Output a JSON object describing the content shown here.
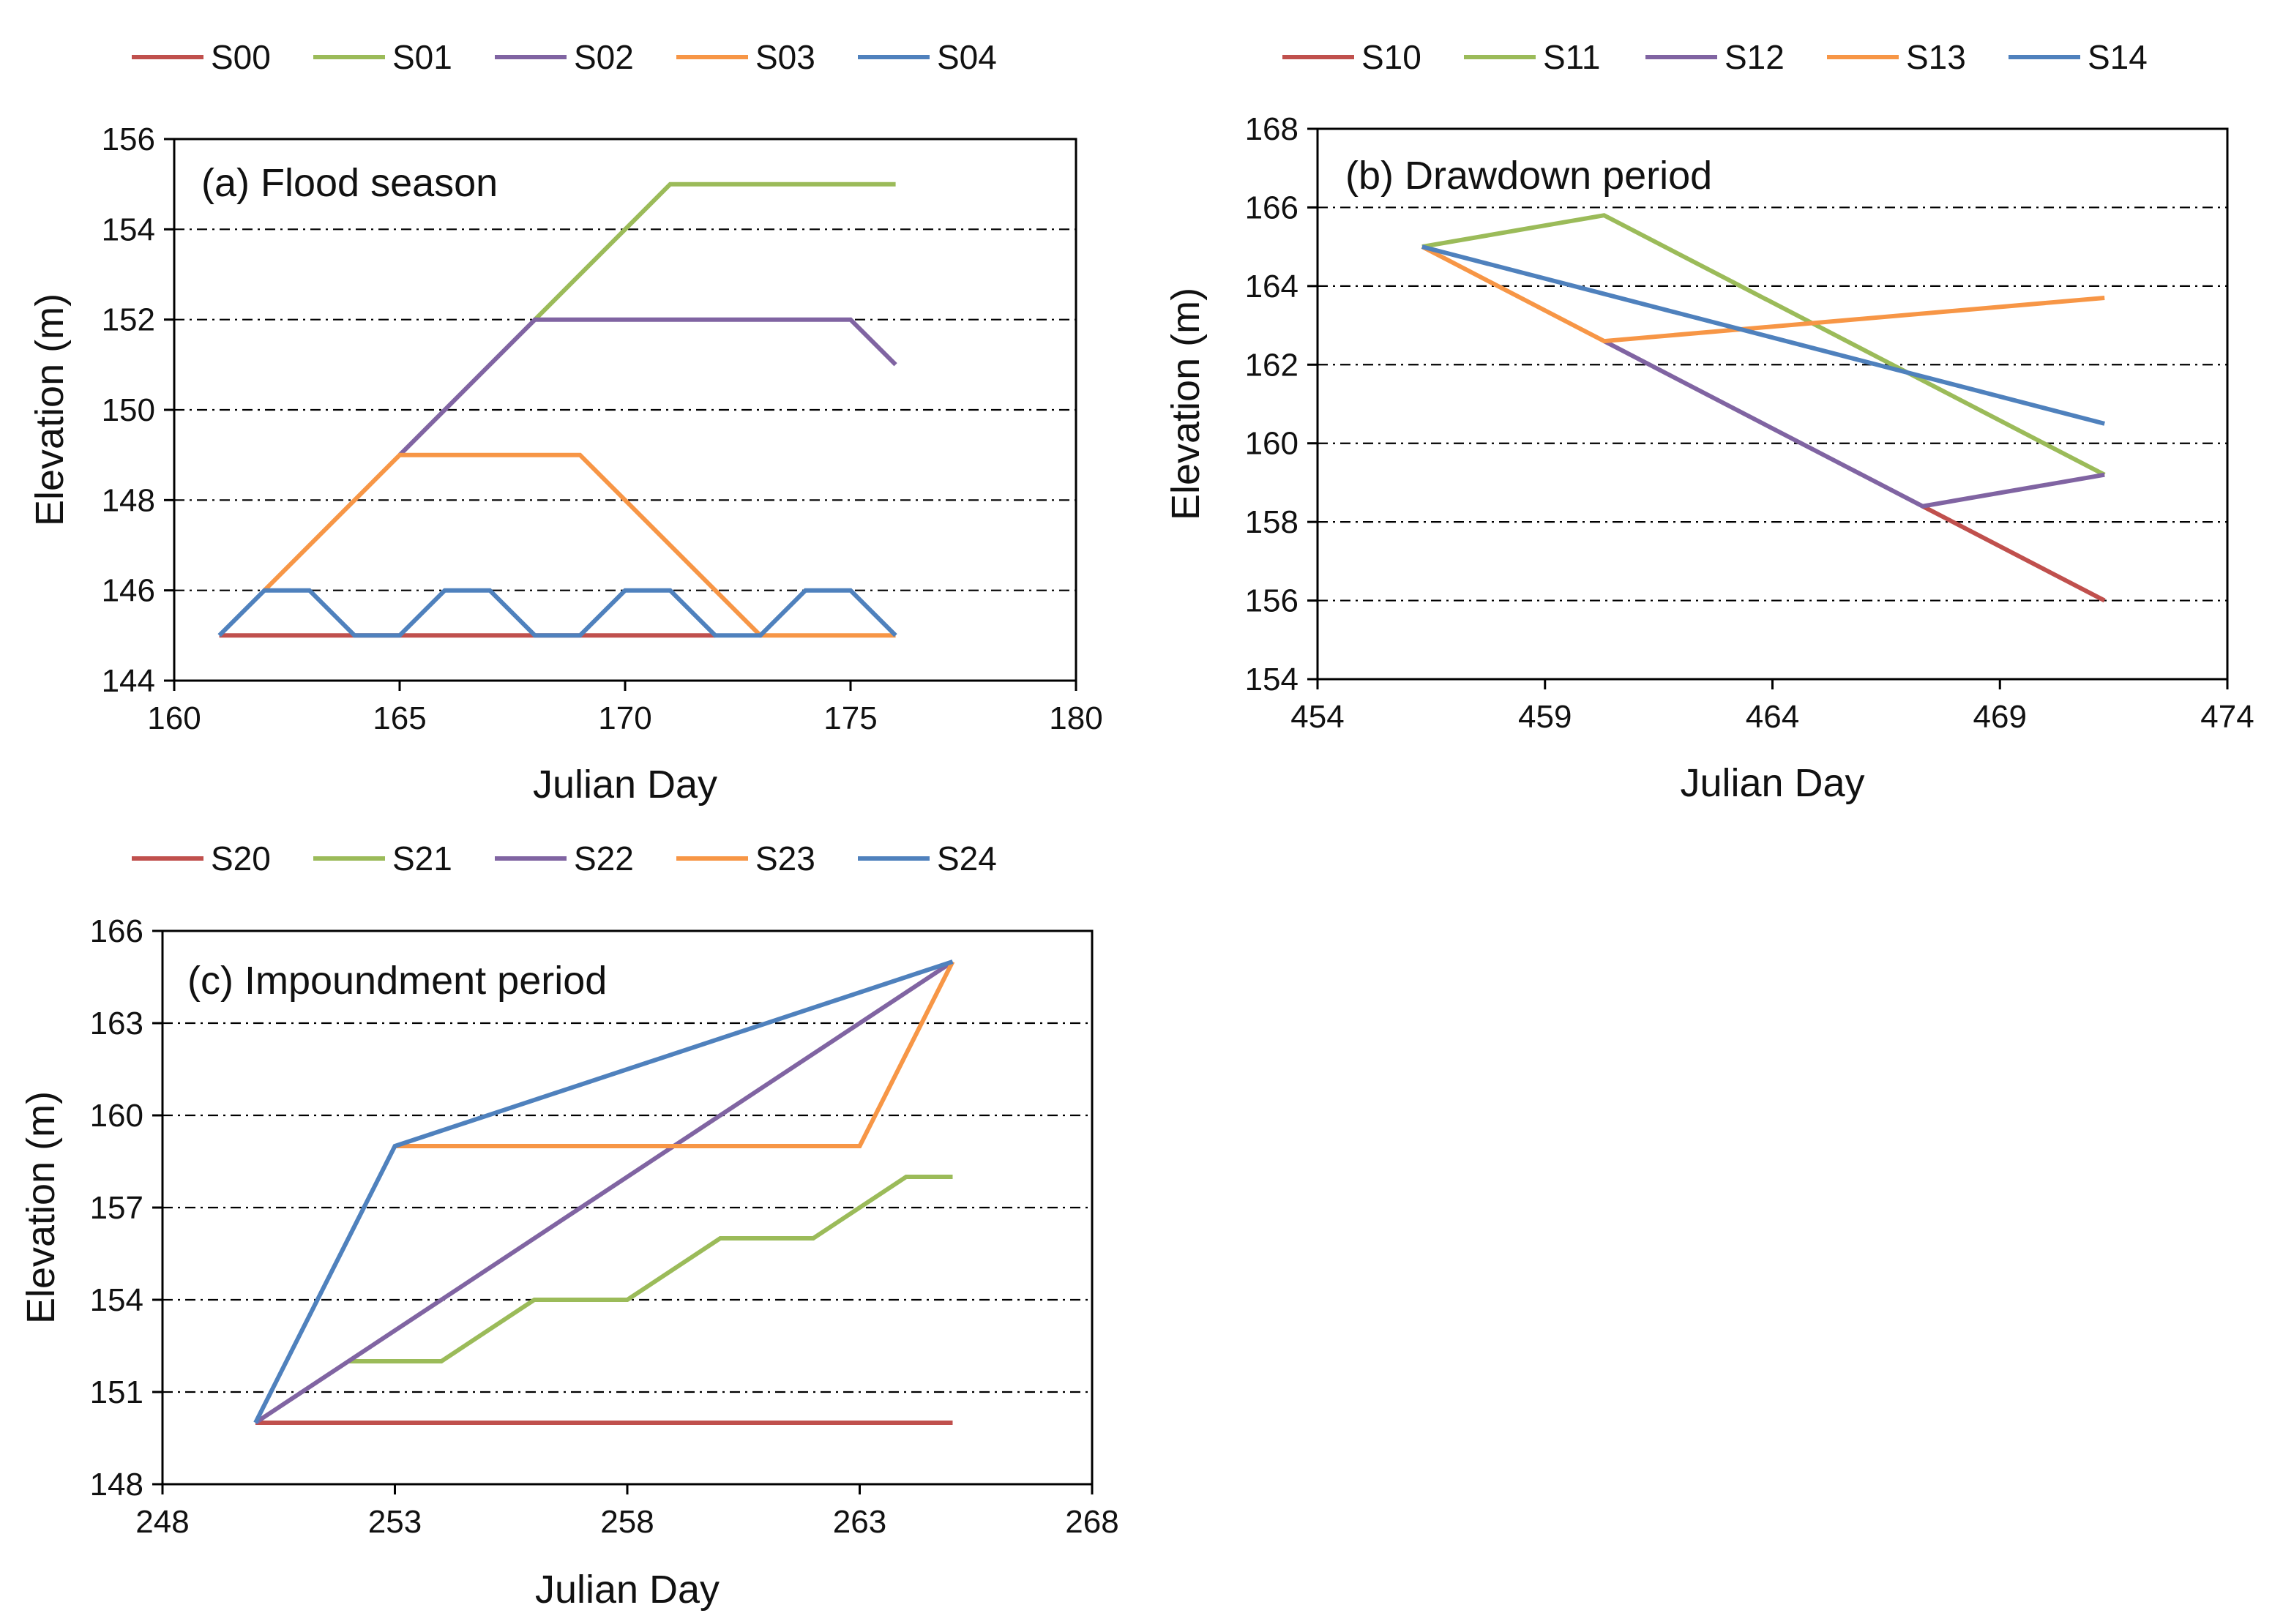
{
  "chart_data": [
    {
      "type": "line",
      "title": "(a) Flood season",
      "xlabel": "Julian Day",
      "ylabel": "Elevation (m)",
      "xlim": [
        160,
        180
      ],
      "ylim": [
        144,
        156
      ],
      "xticks": [
        "160",
        "165",
        "170",
        "175",
        "180"
      ],
      "yticks": [
        "144",
        "146",
        "148",
        "150",
        "152",
        "154",
        "156"
      ],
      "grid": "horizontal dash-dot",
      "legend_position": "top",
      "series": [
        {
          "name": "S00",
          "color": "#C0504D",
          "points": [
            [
              161,
              145
            ],
            [
              172,
              145
            ]
          ]
        },
        {
          "name": "S01",
          "color": "#9BBB59",
          "points": [
            [
              168,
              152
            ],
            [
              171,
              155
            ],
            [
              176,
              155
            ]
          ]
        },
        {
          "name": "S02",
          "color": "#8064A2",
          "points": [
            [
              165,
              149
            ],
            [
              168,
              152
            ],
            [
              175,
              152
            ],
            [
              176,
              151
            ]
          ]
        },
        {
          "name": "S03",
          "color": "#F79646",
          "points": [
            [
              162,
              146
            ],
            [
              165,
              149
            ],
            [
              169,
              149
            ],
            [
              173,
              145
            ],
            [
              176,
              145
            ]
          ]
        },
        {
          "name": "S04",
          "color": "#4F81BD",
          "points": [
            [
              161,
              145
            ],
            [
              162,
              146
            ],
            [
              163,
              146
            ],
            [
              164,
              145
            ],
            [
              165,
              145
            ],
            [
              166,
              146
            ],
            [
              167,
              146
            ],
            [
              168,
              145
            ],
            [
              169,
              145
            ],
            [
              170,
              146
            ],
            [
              171,
              146
            ],
            [
              172,
              145
            ],
            [
              173,
              145
            ],
            [
              174,
              146
            ],
            [
              175,
              146
            ],
            [
              176,
              145
            ]
          ]
        }
      ]
    },
    {
      "type": "line",
      "title": "(b) Drawdown period",
      "xlabel": "Julian Day",
      "ylabel": "Elevation (m)",
      "xlim": [
        454,
        474
      ],
      "ylim": [
        154,
        168
      ],
      "xticks": [
        "454",
        "459",
        "464",
        "469",
        "474"
      ],
      "yticks": [
        "154",
        "156",
        "158",
        "160",
        "162",
        "164",
        "166",
        "168"
      ],
      "grid": "horizontal dash-dot",
      "legend_position": "top",
      "series": [
        {
          "name": "S10",
          "color": "#C0504D",
          "points": [
            [
              467.3,
              158.4
            ],
            [
              471.3,
              156
            ]
          ]
        },
        {
          "name": "S11",
          "color": "#9BBB59",
          "points": [
            [
              456.3,
              165
            ],
            [
              460.3,
              165.8
            ],
            [
              471.3,
              159.2
            ]
          ]
        },
        {
          "name": "S12",
          "color": "#8064A2",
          "points": [
            [
              460.3,
              162.6
            ],
            [
              467.3,
              158.4
            ],
            [
              471.3,
              159.2
            ]
          ]
        },
        {
          "name": "S13",
          "color": "#F79646",
          "points": [
            [
              456.3,
              165
            ],
            [
              460.3,
              162.6
            ],
            [
              471.3,
              163.7
            ]
          ]
        },
        {
          "name": "S14",
          "color": "#4F81BD",
          "points": [
            [
              456.3,
              165
            ],
            [
              471.3,
              160.5
            ]
          ]
        }
      ]
    },
    {
      "type": "line",
      "title": "(c) Impoundment period",
      "xlabel": "Julian Day",
      "ylabel": "Elevation (m)",
      "xlim": [
        248,
        268
      ],
      "ylim": [
        148,
        166
      ],
      "xticks": [
        "248",
        "253",
        "258",
        "263",
        "268"
      ],
      "yticks": [
        "148",
        "151",
        "154",
        "157",
        "160",
        "163",
        "166"
      ],
      "grid": "horizontal dash-dot",
      "legend_position": "top",
      "series": [
        {
          "name": "S20",
          "color": "#C0504D",
          "points": [
            [
              250,
              150
            ],
            [
              265,
              150
            ]
          ]
        },
        {
          "name": "S21",
          "color": "#9BBB59",
          "points": [
            [
              252,
              152
            ],
            [
              254,
              152
            ],
            [
              256,
              154
            ],
            [
              258,
              154
            ],
            [
              260,
              156
            ],
            [
              262,
              156
            ],
            [
              264,
              158
            ],
            [
              265,
              158
            ]
          ]
        },
        {
          "name": "S22",
          "color": "#8064A2",
          "points": [
            [
              250,
              150
            ],
            [
              265,
              165
            ]
          ]
        },
        {
          "name": "S23",
          "color": "#F79646",
          "points": [
            [
              253,
              159
            ],
            [
              263,
              159
            ],
            [
              265,
              165
            ]
          ]
        },
        {
          "name": "S24",
          "color": "#4F81BD",
          "points": [
            [
              250,
              150
            ],
            [
              253,
              159
            ],
            [
              265,
              165
            ]
          ]
        }
      ]
    }
  ]
}
